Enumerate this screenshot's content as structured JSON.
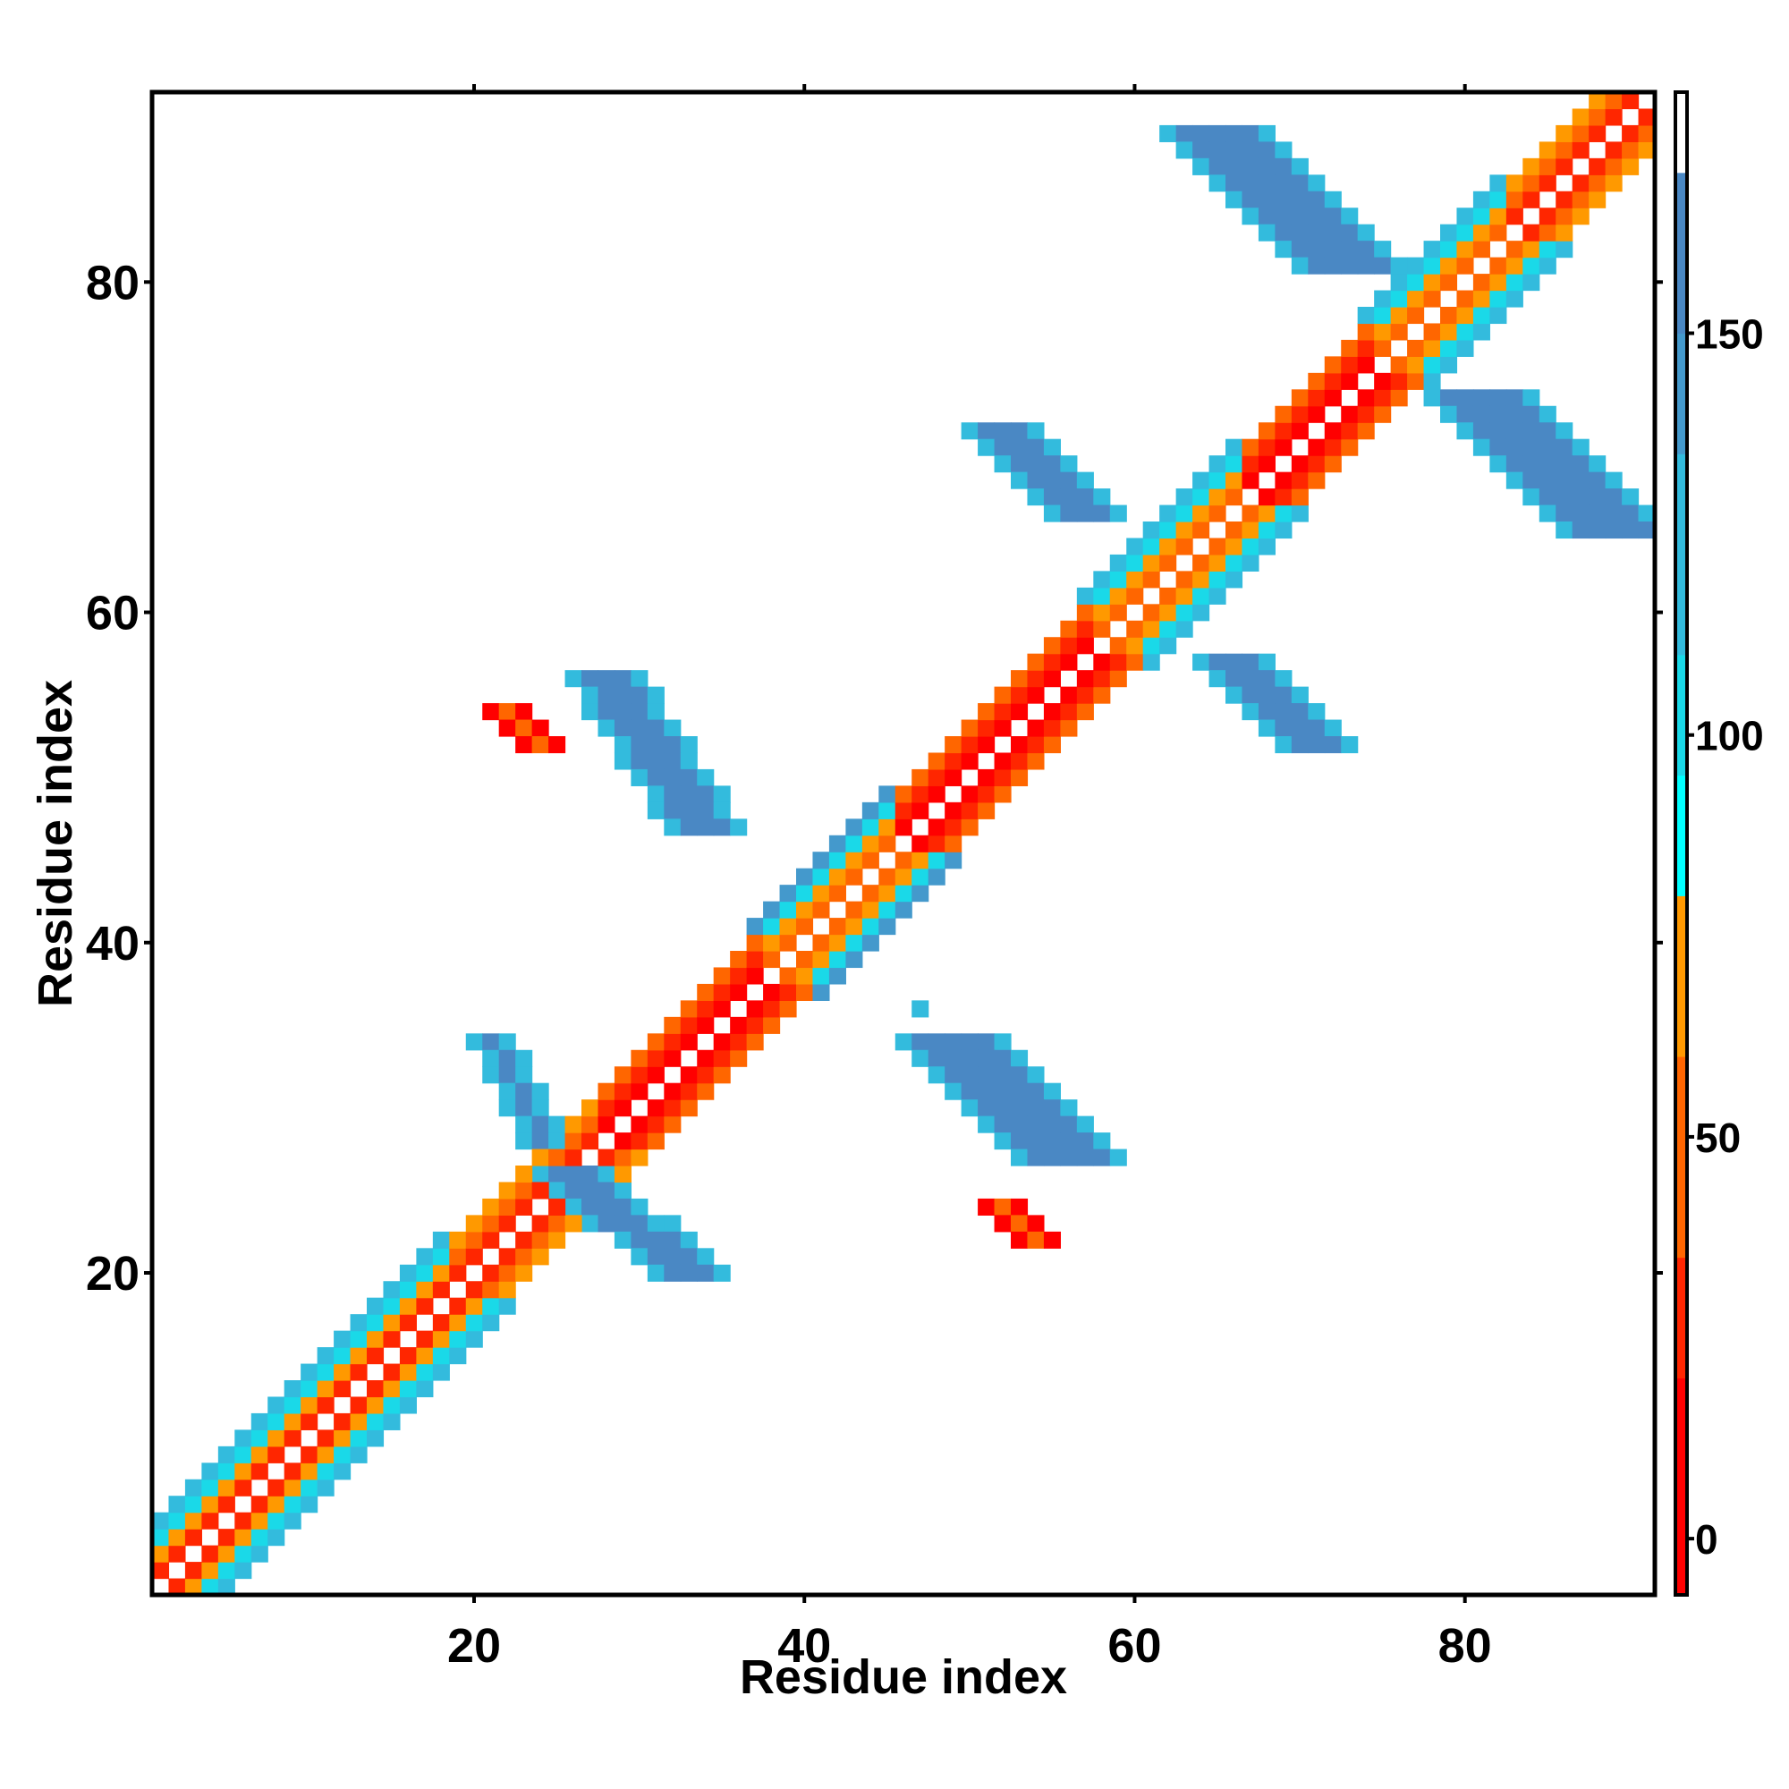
{
  "chart_data": {
    "type": "heatmap",
    "title": "",
    "xlabel": "Residue index",
    "ylabel": "Residue index",
    "xlim": [
      1,
      91
    ],
    "ylim": [
      1,
      91
    ],
    "x_ticks": [
      20,
      40,
      60,
      80
    ],
    "y_ticks": [
      20,
      40,
      60,
      80
    ],
    "grid": false,
    "symmetric": true,
    "colorbar": {
      "ticks": [
        0,
        50,
        100,
        150
      ],
      "range": [
        -7,
        180
      ],
      "colors": [
        {
          "from": -7,
          "to": 20,
          "color": "#ff0000"
        },
        {
          "from": 20,
          "to": 35,
          "color": "#ff2600"
        },
        {
          "from": 35,
          "to": 60,
          "color": "#ff6600"
        },
        {
          "from": 60,
          "to": 80,
          "color": "#ff9900"
        },
        {
          "from": 80,
          "to": 95,
          "color": "#00ffff"
        },
        {
          "from": 95,
          "to": 110,
          "color": "#1ad9e8"
        },
        {
          "from": 110,
          "to": 135,
          "color": "#33bbdd"
        },
        {
          "from": 135,
          "to": 150,
          "color": "#4499cc"
        },
        {
          "from": 150,
          "to": 170,
          "color": "#4a88c4"
        },
        {
          "from": 170,
          "to": 180,
          "color": "#ffffff"
        }
      ]
    },
    "diagonal_bands": [
      {
        "from": 1,
        "to": 18,
        "offsets": [
          1,
          2,
          3,
          4
        ],
        "values": [
          30,
          60,
          95,
          110
        ]
      },
      {
        "from": 18,
        "to": 27,
        "offsets": [
          1,
          2,
          3
        ],
        "values": [
          20,
          45,
          70
        ]
      },
      {
        "from": 27,
        "to": 37,
        "offsets": [
          1,
          2,
          3
        ],
        "values": [
          10,
          20,
          40
        ]
      },
      {
        "from": 37,
        "to": 45,
        "offsets": [
          1,
          2,
          3,
          4
        ],
        "values": [
          40,
          60,
          95,
          140
        ]
      },
      {
        "from": 45,
        "to": 57,
        "offsets": [
          1,
          2,
          3
        ],
        "values": [
          10,
          20,
          40
        ]
      },
      {
        "from": 57,
        "to": 66,
        "offsets": [
          1,
          2,
          3,
          4
        ],
        "values": [
          40,
          60,
          95,
          110
        ]
      },
      {
        "from": 66,
        "to": 74,
        "offsets": [
          1,
          2,
          3
        ],
        "values": [
          10,
          20,
          40
        ]
      },
      {
        "from": 74,
        "to": 82,
        "offsets": [
          1,
          2,
          3,
          4
        ],
        "values": [
          40,
          60,
          95,
          110
        ]
      },
      {
        "from": 82,
        "to": 91,
        "offsets": [
          1,
          2,
          3
        ],
        "values": [
          20,
          40,
          60
        ]
      }
    ],
    "off_diagonal_contacts": [
      {
        "x": [
          21,
          24
        ],
        "y": [
          28,
          34
        ],
        "value": 155
      },
      {
        "x": [
          26,
          33
        ],
        "y": [
          20,
          26
        ],
        "value": 155
      },
      {
        "x": [
          28,
          34
        ],
        "y": [
          47,
          56
        ],
        "value": 155
      },
      {
        "x": [
          36,
          36
        ],
        "y": [
          47,
          47
        ],
        "value": 125
      },
      {
        "x": [
          22,
          24
        ],
        "y": [
          52,
          54
        ],
        "value": 45
      },
      {
        "x": [
          47,
          47
        ],
        "y": [
          36,
          36
        ],
        "value": 125
      },
      {
        "x": [
          49,
          56
        ],
        "y": [
          27,
          34
        ],
        "value": 155
      },
      {
        "x": [
          52,
          54
        ],
        "y": [
          22,
          24
        ],
        "value": 45
      },
      {
        "x": [
          52,
          57
        ],
        "y": [
          66,
          71
        ],
        "value": 155
      },
      {
        "x": [
          66,
          71
        ],
        "y": [
          52,
          57
        ],
        "value": 155
      },
      {
        "x": [
          65,
          73
        ],
        "y": [
          81,
          89
        ],
        "value": 155
      },
      {
        "x": [
          81,
          89
        ],
        "y": [
          65,
          73
        ],
        "value": 155
      }
    ]
  }
}
